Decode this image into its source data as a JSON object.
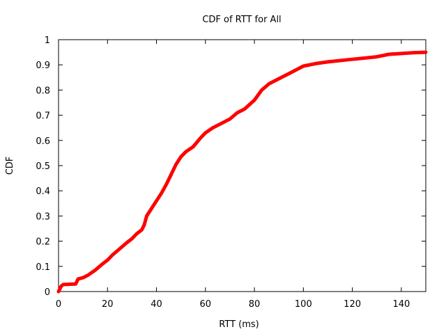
{
  "chart_data": {
    "type": "line",
    "title": "CDF of RTT for All",
    "xlabel": "RTT (ms)",
    "ylabel": "CDF",
    "xlim": [
      0,
      150
    ],
    "ylim": [
      0,
      1
    ],
    "x_ticks": [
      0,
      20,
      40,
      60,
      80,
      100,
      120,
      140
    ],
    "y_ticks": [
      0,
      0.1,
      0.2,
      0.3,
      0.4,
      0.5,
      0.6,
      0.7,
      0.8,
      0.9,
      1
    ],
    "grid": false,
    "legend": "none",
    "colors": {
      "series": "#ff0000",
      "axes": "#000000"
    },
    "series": [
      {
        "x": [
          0,
          0.5,
          1,
          1.5,
          2,
          7,
          8,
          10,
          12,
          15,
          18,
          20,
          22,
          25,
          28,
          30,
          32,
          34,
          35,
          36,
          38,
          40,
          42,
          44,
          46,
          48,
          50,
          52,
          55,
          58,
          60,
          63,
          66,
          70,
          73,
          76,
          80,
          83,
          86,
          90,
          95,
          100,
          105,
          110,
          120,
          130,
          135,
          140,
          145,
          150
        ],
        "y": [
          0,
          0.01,
          0.02,
          0.025,
          0.028,
          0.03,
          0.05,
          0.055,
          0.065,
          0.085,
          0.11,
          0.125,
          0.145,
          0.17,
          0.195,
          0.21,
          0.23,
          0.245,
          0.265,
          0.3,
          0.33,
          0.36,
          0.39,
          0.425,
          0.465,
          0.505,
          0.535,
          0.555,
          0.575,
          0.61,
          0.63,
          0.65,
          0.665,
          0.685,
          0.71,
          0.725,
          0.76,
          0.8,
          0.825,
          0.845,
          0.87,
          0.895,
          0.905,
          0.912,
          0.922,
          0.932,
          0.942,
          0.945,
          0.948,
          0.95
        ]
      }
    ]
  }
}
